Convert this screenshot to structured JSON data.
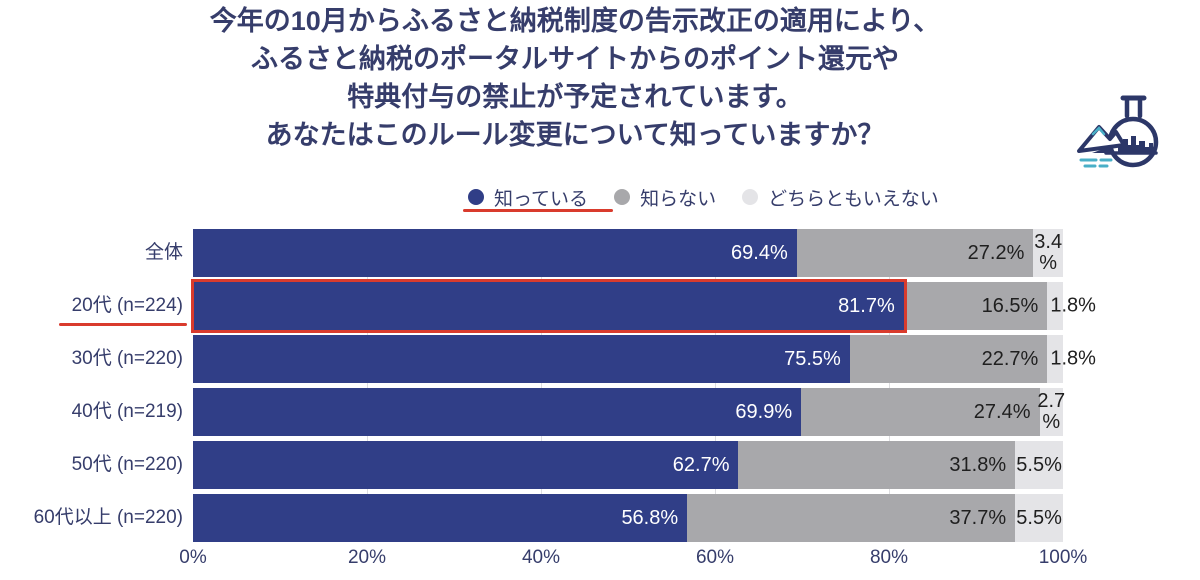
{
  "title": {
    "lines": [
      "今年の10月からふるさと納税制度の告示改正の適用により、",
      "ふるさと納税のポータルサイトからのポイント還元や",
      "特典付与の禁止が予定されています。",
      "あなたはこのルール変更について知っていますか？"
    ]
  },
  "icons": {
    "logo": "flask-with-mountain-cityscape-and-waves-logo"
  },
  "legend": {
    "items": [
      {
        "label": "知っている",
        "color": "#303E87",
        "underline": true
      },
      {
        "label": "知らない",
        "color": "#A8A8AB",
        "underline": false
      },
      {
        "label": "どちらともいえない",
        "color": "#E4E4E7",
        "underline": false
      }
    ]
  },
  "colors": {
    "accent_red": "#D93B2D",
    "navy_text": "#363D6B",
    "bar_blue": "#303E87",
    "bar_gray": "#A8A8AB",
    "bar_lightgray": "#E4E4E7",
    "gridline": "#DDDDE0"
  },
  "chart_data": {
    "type": "bar",
    "stacked": true,
    "orientation": "horizontal",
    "xlim": [
      0,
      100
    ],
    "x_ticks": [
      "0%",
      "20%",
      "40%",
      "60%",
      "80%",
      "100%"
    ],
    "gridlines_pct": [
      20,
      40,
      60,
      80
    ],
    "grid": true,
    "legend_position": "top-center",
    "series_names": [
      "知っている",
      "知らない",
      "どちらともいえない"
    ],
    "series_colors": [
      "#303E87",
      "#A8A8AB",
      "#E4E4E7"
    ],
    "categories": [
      "全体",
      "20代 (n=224)",
      "30代 (n=220)",
      "40代 (n=219)",
      "50代 (n=220)",
      "60代以上 (n=220)"
    ],
    "rows": [
      {
        "category": "全体",
        "values": [
          69.4,
          27.2,
          3.4
        ],
        "labels": [
          "69.4%",
          "27.2%",
          "3.4\n%"
        ],
        "third_label_mode": "inside",
        "highlight": false,
        "label_underline": false
      },
      {
        "category": "20代 (n=224)",
        "values": [
          81.7,
          16.5,
          1.8
        ],
        "labels": [
          "81.7%",
          "16.5%",
          "1.8%"
        ],
        "third_label_mode": "outside",
        "highlight": true,
        "label_underline": true
      },
      {
        "category": "30代 (n=220)",
        "values": [
          75.5,
          22.7,
          1.8
        ],
        "labels": [
          "75.5%",
          "22.7%",
          "1.8%"
        ],
        "third_label_mode": "outside",
        "highlight": false,
        "label_underline": false
      },
      {
        "category": "40代 (n=219)",
        "values": [
          69.9,
          27.4,
          2.7
        ],
        "labels": [
          "69.9%",
          "27.4%",
          "2.7\n%"
        ],
        "third_label_mode": "inside",
        "highlight": false,
        "label_underline": false
      },
      {
        "category": "50代 (n=220)",
        "values": [
          62.7,
          31.8,
          5.5
        ],
        "labels": [
          "62.7%",
          "31.8%",
          "5.5%"
        ],
        "third_label_mode": "inside",
        "highlight": false,
        "label_underline": false
      },
      {
        "category": "60代以上 (n=220)",
        "values": [
          56.8,
          37.7,
          5.5
        ],
        "labels": [
          "56.8%",
          "37.7%",
          "5.5%"
        ],
        "third_label_mode": "inside",
        "highlight": false,
        "label_underline": false
      }
    ],
    "highlight_color": "#D93B2D"
  }
}
